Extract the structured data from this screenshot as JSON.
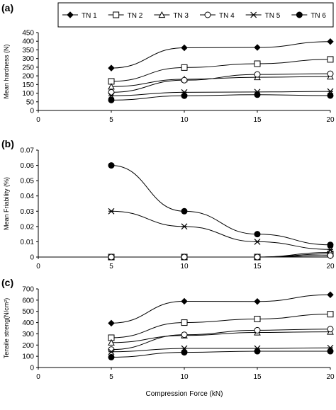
{
  "legend": {
    "entries": [
      {
        "label": "TN 1",
        "marker": "diamond"
      },
      {
        "label": "TN 2",
        "marker": "square-open"
      },
      {
        "label": "TN 3",
        "marker": "triangle-open"
      },
      {
        "label": "TN 4",
        "marker": "circle-open"
      },
      {
        "label": "TN 5",
        "marker": "asterisk"
      },
      {
        "label": "TN 6",
        "marker": "circle-filled"
      }
    ]
  },
  "chart_data": [
    {
      "panel_label": "(a)",
      "type": "line",
      "ylabel": "Mean hardness (N)",
      "xlabel": "",
      "xlim": [
        0,
        20
      ],
      "ylim": [
        0,
        450
      ],
      "xticks": [
        "0",
        "5",
        "10",
        "15",
        "20"
      ],
      "yticks": [
        "0",
        "50",
        "100",
        "150",
        "200",
        "250",
        "300",
        "350",
        "400",
        "450"
      ],
      "x": [
        5,
        10,
        15,
        20
      ],
      "series": [
        {
          "name": "TN 1",
          "values": [
            245,
            362,
            364,
            398
          ]
        },
        {
          "name": "TN 2",
          "values": [
            168,
            248,
            270,
            295
          ]
        },
        {
          "name": "TN 3",
          "values": [
            138,
            180,
            192,
            196
          ]
        },
        {
          "name": "TN 4",
          "values": [
            105,
            175,
            208,
            212
          ]
        },
        {
          "name": "TN 5",
          "values": [
            85,
            105,
            107,
            110
          ]
        },
        {
          "name": "TN 6",
          "values": [
            60,
            85,
            91,
            86
          ]
        }
      ]
    },
    {
      "panel_label": "(b)",
      "type": "line",
      "ylabel": "Mean Friability (%)",
      "xlabel": "",
      "xlim": [
        0,
        20
      ],
      "ylim": [
        0,
        0.07
      ],
      "xticks": [
        "0",
        "5",
        "10",
        "15",
        "20"
      ],
      "yticks": [
        "0",
        "0.01",
        "0.02",
        "0.03",
        "0.04",
        "0.05",
        "0.06",
        "0.07"
      ],
      "x": [
        5,
        10,
        15,
        20
      ],
      "series": [
        {
          "name": "TN 1",
          "values": [
            0,
            0,
            0,
            0.001
          ]
        },
        {
          "name": "TN 2",
          "values": [
            0,
            0,
            0,
            0.002
          ]
        },
        {
          "name": "TN 3",
          "values": [
            0,
            0,
            0,
            0.003
          ]
        },
        {
          "name": "TN 4",
          "values": [
            0,
            0,
            0,
            0.001
          ]
        },
        {
          "name": "TN 5",
          "values": [
            0.03,
            0.02,
            0.01,
            0.005
          ]
        },
        {
          "name": "TN 6",
          "values": [
            0.06,
            0.03,
            0.015,
            0.008
          ]
        }
      ]
    },
    {
      "panel_label": "(c)",
      "type": "line",
      "ylabel": "Tensile streng(N/cm²)",
      "xlabel": "Compression Force (kN)",
      "xlim": [
        0,
        20
      ],
      "ylim": [
        0,
        700
      ],
      "xticks": [
        "0",
        "5",
        "10",
        "15",
        "20"
      ],
      "yticks": [
        "0",
        "100",
        "200",
        "300",
        "400",
        "500",
        "600",
        "700"
      ],
      "x": [
        5,
        10,
        15,
        20
      ],
      "series": [
        {
          "name": "TN 1",
          "values": [
            395,
            590,
            588,
            648
          ]
        },
        {
          "name": "TN 2",
          "values": [
            265,
            400,
            432,
            475
          ]
        },
        {
          "name": "TN 3",
          "values": [
            222,
            285,
            312,
            318
          ]
        },
        {
          "name": "TN 4",
          "values": [
            160,
            292,
            332,
            342
          ]
        },
        {
          "name": "TN 5",
          "values": [
            140,
            170,
            170,
            175
          ]
        },
        {
          "name": "TN 6",
          "values": [
            92,
            135,
            145,
            145
          ]
        }
      ]
    }
  ]
}
